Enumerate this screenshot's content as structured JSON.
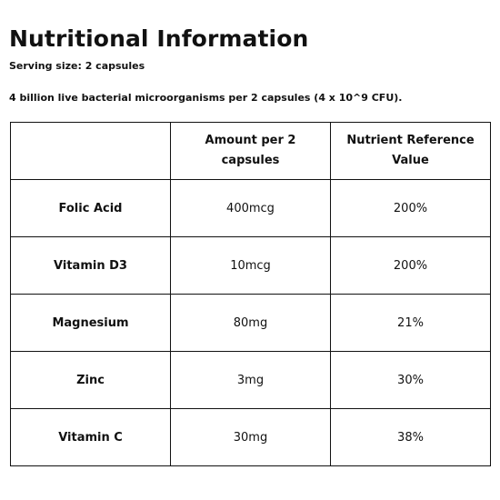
{
  "title": "Nutritional Information",
  "serving_size": "Serving size: 2 capsules",
  "bacteria_note": "4 billion live bacterial microorganisms per 2 capsules (4 x 10^9 CFU).",
  "table": {
    "headers": [
      "",
      "Amount per 2 capsules",
      "Nutrient Reference Value"
    ],
    "rows": [
      {
        "nutrient": "Folic Acid",
        "amount": "400mcg",
        "nrv": "200%"
      },
      {
        "nutrient": "Vitamin D3",
        "amount": "10mcg",
        "nrv": "200%"
      },
      {
        "nutrient": "Magnesium",
        "amount": "80mg",
        "nrv": "21%"
      },
      {
        "nutrient": "Zinc",
        "amount": "3mg",
        "nrv": "30%"
      },
      {
        "nutrient": "Vitamin C",
        "amount": "30mg",
        "nrv": "38%"
      }
    ]
  }
}
